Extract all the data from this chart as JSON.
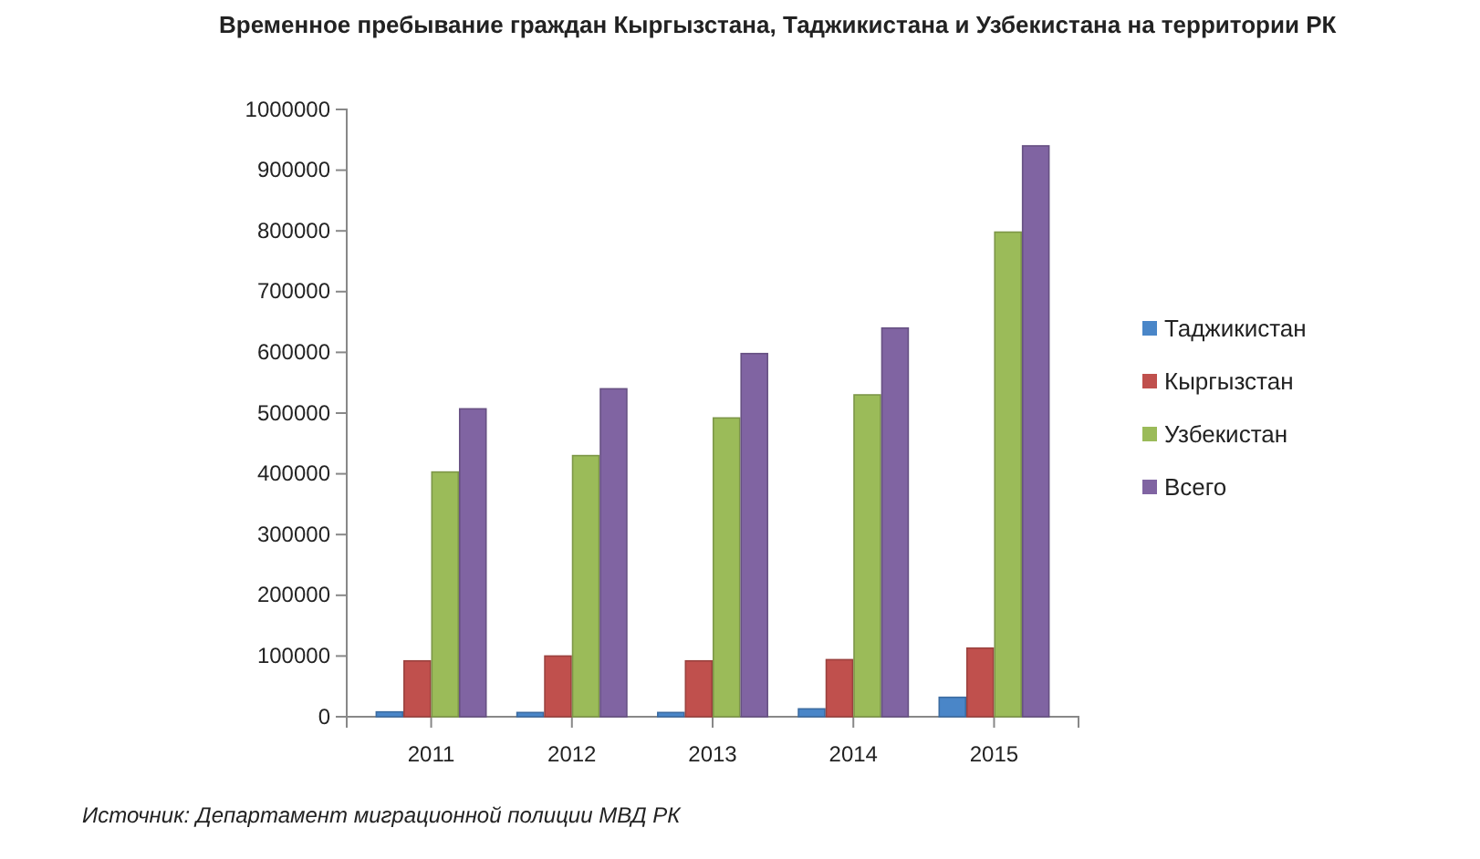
{
  "chart_data": {
    "type": "bar",
    "title": "Временное пребывание граждан Кыргызстана, Таджикистана и Узбекистана на территории РК",
    "categories": [
      "2011",
      "2012",
      "2013",
      "2014",
      "2015"
    ],
    "series": [
      {
        "name": "Таджикистан",
        "color": "#4a86c8",
        "values": [
          8000,
          7000,
          7000,
          13000,
          32000
        ]
      },
      {
        "name": "Кыргызстан",
        "color": "#c0504d",
        "values": [
          92000,
          100000,
          92000,
          94000,
          113000
        ]
      },
      {
        "name": "Узбекистан",
        "color": "#9bbb59",
        "values": [
          403000,
          430000,
          492000,
          530000,
          798000
        ]
      },
      {
        "name": "Всего",
        "color": "#8064a2",
        "values": [
          507000,
          540000,
          598000,
          640000,
          940000
        ]
      }
    ],
    "ylim": [
      0,
      1000000
    ],
    "yticks": [
      0,
      100000,
      200000,
      300000,
      400000,
      500000,
      600000,
      700000,
      800000,
      900000,
      1000000
    ],
    "grid": false,
    "legend": "right",
    "annotations": [
      "Источник: Департамент миграционной полиции МВД РК"
    ]
  }
}
